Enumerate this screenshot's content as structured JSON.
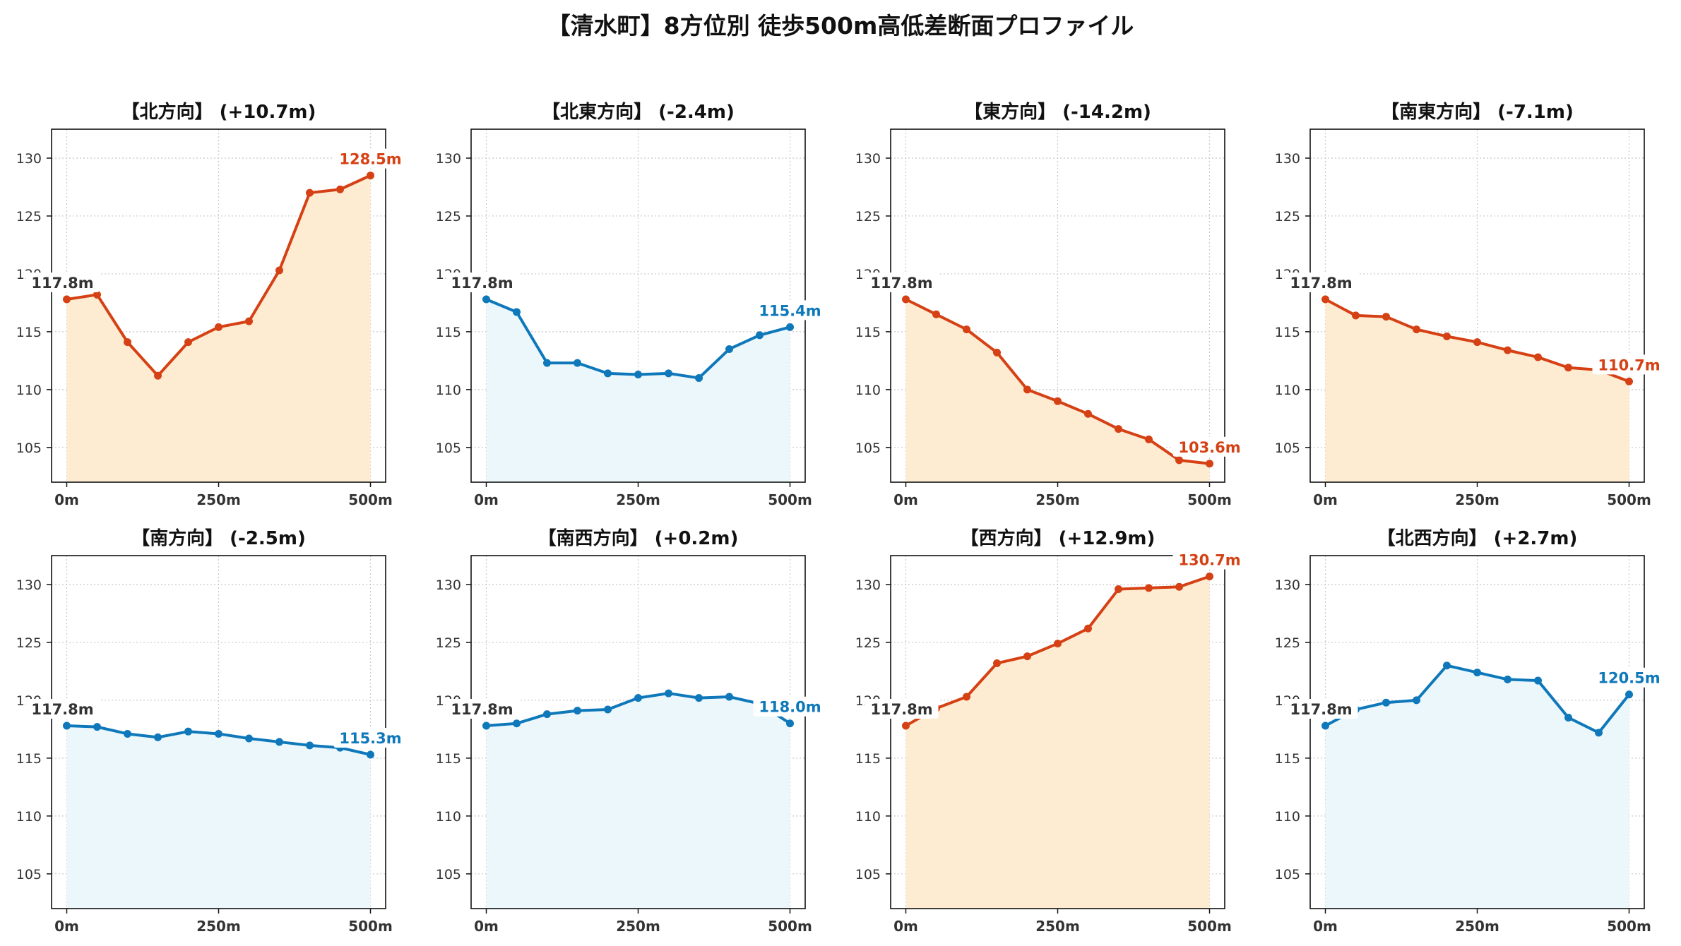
{
  "title": "【清水町】8方位別 徒歩500m高低差断面プロファイル",
  "colors": {
    "up_line": "#d54114",
    "up_fill": "#feecd2",
    "down_line": "#0e78ba",
    "down_fill": "#ebf7fb",
    "start_label": "#333333"
  },
  "chart_data": [
    {
      "type": "area",
      "title": "【北方向】 (+10.7m)",
      "trend": "up",
      "x": [
        0,
        50,
        100,
        150,
        200,
        250,
        300,
        350,
        400,
        450,
        500
      ],
      "values": [
        117.8,
        118.2,
        114.1,
        111.2,
        114.1,
        115.4,
        115.9,
        120.3,
        127.0,
        127.3,
        128.5
      ],
      "ylim": [
        102,
        132.5
      ],
      "yticks": [
        105,
        110,
        115,
        120,
        125,
        130
      ],
      "xticks": [
        "0m",
        "250m",
        "500m"
      ],
      "start_label": "117.8m",
      "end_label": "128.5m",
      "grid": true
    },
    {
      "type": "area",
      "title": "【北東方向】 (-2.4m)",
      "trend": "down",
      "x": [
        0,
        50,
        100,
        150,
        200,
        250,
        300,
        350,
        400,
        450,
        500
      ],
      "values": [
        117.8,
        116.7,
        112.3,
        112.3,
        111.4,
        111.3,
        111.4,
        111.0,
        113.5,
        114.7,
        115.4
      ],
      "ylim": [
        102,
        132.5
      ],
      "yticks": [
        105,
        110,
        115,
        120,
        125,
        130
      ],
      "xticks": [
        "0m",
        "250m",
        "500m"
      ],
      "start_label": "117.8m",
      "end_label": "115.4m",
      "grid": true
    },
    {
      "type": "area",
      "title": "【東方向】 (-14.2m)",
      "trend": "up",
      "x": [
        0,
        50,
        100,
        150,
        200,
        250,
        300,
        350,
        400,
        450,
        500
      ],
      "values": [
        117.8,
        116.5,
        115.2,
        113.2,
        110.0,
        109.0,
        107.9,
        106.6,
        105.7,
        103.9,
        103.6
      ],
      "ylim": [
        102,
        132.5
      ],
      "yticks": [
        105,
        110,
        115,
        120,
        125,
        130
      ],
      "xticks": [
        "0m",
        "250m",
        "500m"
      ],
      "start_label": "117.8m",
      "end_label": "103.6m",
      "grid": true
    },
    {
      "type": "area",
      "title": "【南東方向】 (-7.1m)",
      "trend": "up",
      "x": [
        0,
        50,
        100,
        150,
        200,
        250,
        300,
        350,
        400,
        450,
        500
      ],
      "values": [
        117.8,
        116.4,
        116.3,
        115.2,
        114.6,
        114.1,
        113.4,
        112.8,
        111.9,
        111.7,
        110.7
      ],
      "ylim": [
        102,
        132.5
      ],
      "yticks": [
        105,
        110,
        115,
        120,
        125,
        130
      ],
      "xticks": [
        "0m",
        "250m",
        "500m"
      ],
      "start_label": "117.8m",
      "end_label": "110.7m",
      "grid": true
    },
    {
      "type": "area",
      "title": "【南方向】 (-2.5m)",
      "trend": "down",
      "x": [
        0,
        50,
        100,
        150,
        200,
        250,
        300,
        350,
        400,
        450,
        500
      ],
      "values": [
        117.8,
        117.7,
        117.1,
        116.8,
        117.3,
        117.1,
        116.7,
        116.4,
        116.1,
        115.9,
        115.3
      ],
      "ylim": [
        102,
        132.5
      ],
      "yticks": [
        105,
        110,
        115,
        120,
        125,
        130
      ],
      "xticks": [
        "0m",
        "250m",
        "500m"
      ],
      "start_label": "117.8m",
      "end_label": "115.3m",
      "grid": true
    },
    {
      "type": "area",
      "title": "【南西方向】 (+0.2m)",
      "trend": "down",
      "x": [
        0,
        50,
        100,
        150,
        200,
        250,
        300,
        350,
        400,
        450,
        500
      ],
      "values": [
        117.8,
        118.0,
        118.8,
        119.1,
        119.2,
        120.2,
        120.6,
        120.2,
        120.3,
        119.7,
        118.0
      ],
      "ylim": [
        102,
        132.5
      ],
      "yticks": [
        105,
        110,
        115,
        120,
        125,
        130
      ],
      "xticks": [
        "0m",
        "250m",
        "500m"
      ],
      "start_label": "117.8m",
      "end_label": "118.0m",
      "grid": true
    },
    {
      "type": "area",
      "title": "【西方向】 (+12.9m)",
      "trend": "up",
      "x": [
        0,
        50,
        100,
        150,
        200,
        250,
        300,
        350,
        400,
        450,
        500
      ],
      "values": [
        117.8,
        119.3,
        120.3,
        123.2,
        123.8,
        124.9,
        126.2,
        129.6,
        129.7,
        129.8,
        130.7
      ],
      "ylim": [
        102,
        132.5
      ],
      "yticks": [
        105,
        110,
        115,
        120,
        125,
        130
      ],
      "xticks": [
        "0m",
        "250m",
        "500m"
      ],
      "start_label": "117.8m",
      "end_label": "130.7m",
      "grid": true
    },
    {
      "type": "area",
      "title": "【北西方向】 (+2.7m)",
      "trend": "down",
      "x": [
        0,
        50,
        100,
        150,
        200,
        250,
        300,
        350,
        400,
        450,
        500
      ],
      "values": [
        117.8,
        119.2,
        119.8,
        120.0,
        123.0,
        122.4,
        121.8,
        121.7,
        118.5,
        117.2,
        120.5
      ],
      "ylim": [
        102,
        132.5
      ],
      "yticks": [
        105,
        110,
        115,
        120,
        125,
        130
      ],
      "xticks": [
        "0m",
        "250m",
        "500m"
      ],
      "start_label": "117.8m",
      "end_label": "120.5m",
      "grid": true
    }
  ]
}
